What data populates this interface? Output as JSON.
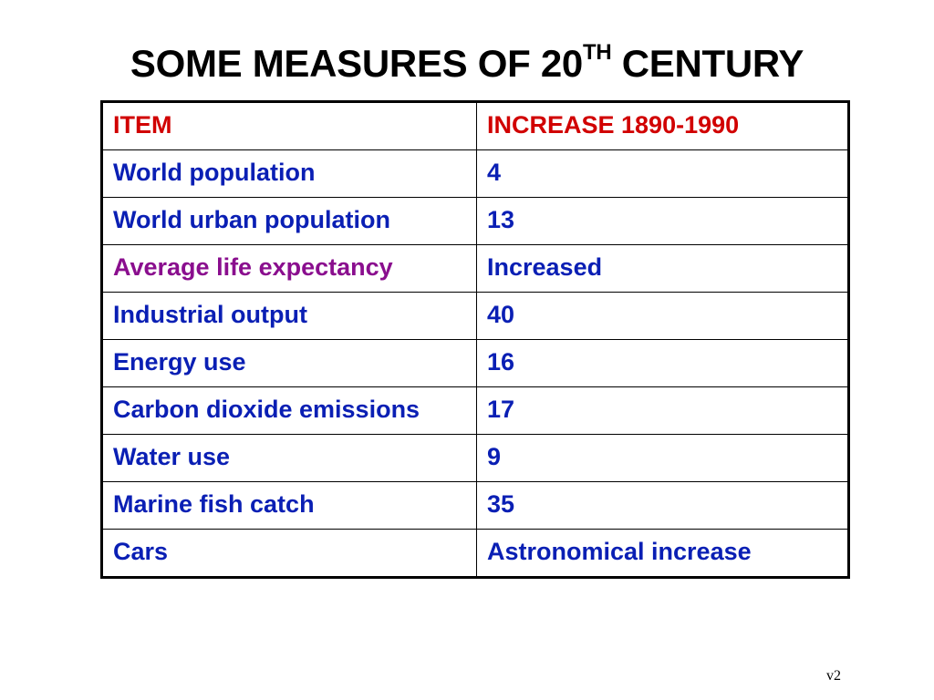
{
  "title": {
    "text": "SOME MEASURES OF 20",
    "superscript": "TH",
    "suffix": " CENTURY"
  },
  "table": {
    "headers": [
      "ITEM",
      "INCREASE 1890-1990"
    ],
    "rows": [
      {
        "item": "World population",
        "increase": "4"
      },
      {
        "item": "World urban population",
        "increase": "13"
      },
      {
        "item": "Average life expectancy",
        "increase": "Increased"
      },
      {
        "item": "Industrial output",
        "increase": "40"
      },
      {
        "item": "Energy use",
        "increase": "16"
      },
      {
        "item": "Carbon dioxide emissions",
        "increase": "17"
      },
      {
        "item": "Water use",
        "increase": "9"
      },
      {
        "item": "Marine fish catch",
        "increase": "35"
      },
      {
        "item": "Cars",
        "increase": "Astronomical increase"
      }
    ]
  },
  "colors": {
    "header": "#d10000",
    "body_text": "#0a1fb4",
    "highlight_row": "#8a0e8e"
  },
  "footer": {
    "version": "v2"
  }
}
